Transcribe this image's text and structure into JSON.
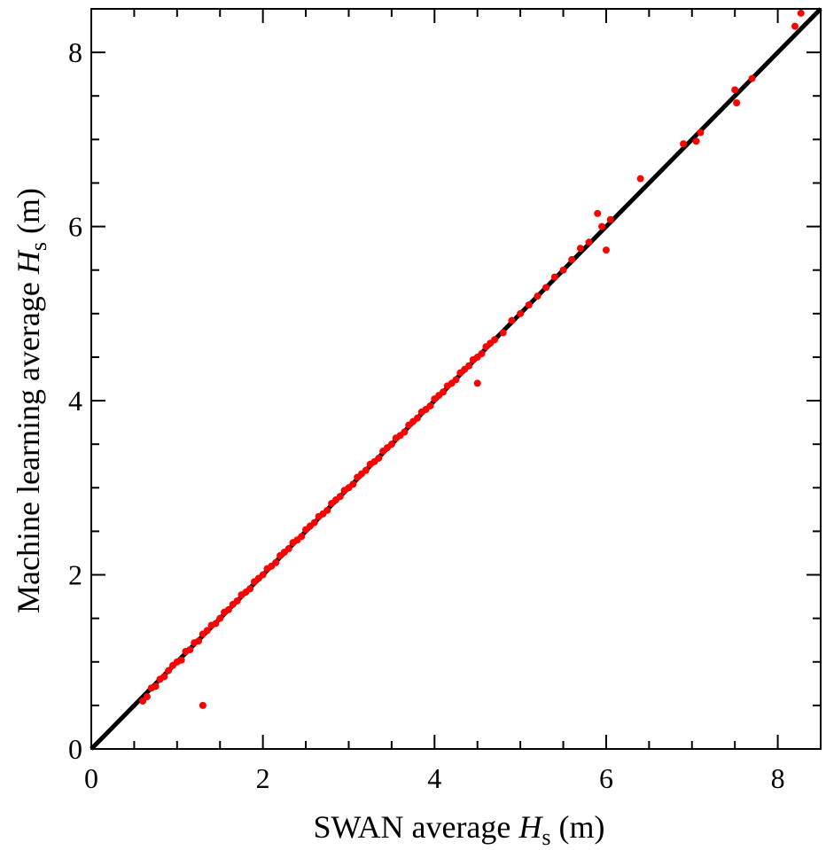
{
  "chart_data": {
    "type": "scatter",
    "xlabel": {
      "prefix": "SWAN average ",
      "var": "H",
      "sub": "s",
      "suffix": " (m)"
    },
    "ylabel": {
      "prefix": "Machine learning average ",
      "var": "H",
      "sub": "s",
      "suffix": " (m)"
    },
    "xlim": [
      0,
      8.5
    ],
    "ylim": [
      0,
      8.5
    ],
    "x_ticks": [
      0,
      2,
      4,
      6,
      8
    ],
    "y_ticks": [
      0,
      2,
      4,
      6,
      8
    ],
    "minor_tick_step": 0.5,
    "grid": false,
    "legend": "none",
    "reference_line": {
      "x": [
        0,
        8.5
      ],
      "y": [
        0,
        8.5
      ],
      "color": "#000000"
    },
    "point_color": "#ff0000",
    "series": [
      {
        "values": [
          [
            0.6,
            0.55
          ],
          [
            0.65,
            0.6
          ],
          [
            0.7,
            0.7
          ],
          [
            0.75,
            0.72
          ],
          [
            0.8,
            0.8
          ],
          [
            0.85,
            0.83
          ],
          [
            0.9,
            0.9
          ],
          [
            0.95,
            0.96
          ],
          [
            1.0,
            1.0
          ],
          [
            1.05,
            1.02
          ],
          [
            1.1,
            1.12
          ],
          [
            1.15,
            1.14
          ],
          [
            1.2,
            1.22
          ],
          [
            1.25,
            1.24
          ],
          [
            1.3,
            0.5
          ],
          [
            1.3,
            1.32
          ],
          [
            1.35,
            1.36
          ],
          [
            1.4,
            1.42
          ],
          [
            1.45,
            1.44
          ],
          [
            1.5,
            1.5
          ],
          [
            1.55,
            1.57
          ],
          [
            1.6,
            1.6
          ],
          [
            1.65,
            1.66
          ],
          [
            1.7,
            1.7
          ],
          [
            1.75,
            1.77
          ],
          [
            1.8,
            1.8
          ],
          [
            1.85,
            1.84
          ],
          [
            1.9,
            1.92
          ],
          [
            1.95,
            1.96
          ],
          [
            2.0,
            2.0
          ],
          [
            2.05,
            2.07
          ],
          [
            2.1,
            2.1
          ],
          [
            2.15,
            2.14
          ],
          [
            2.2,
            2.22
          ],
          [
            2.25,
            2.26
          ],
          [
            2.3,
            2.3
          ],
          [
            2.35,
            2.37
          ],
          [
            2.4,
            2.4
          ],
          [
            2.45,
            2.44
          ],
          [
            2.5,
            2.52
          ],
          [
            2.55,
            2.56
          ],
          [
            2.6,
            2.6
          ],
          [
            2.65,
            2.67
          ],
          [
            2.7,
            2.7
          ],
          [
            2.75,
            2.74
          ],
          [
            2.8,
            2.82
          ],
          [
            2.85,
            2.86
          ],
          [
            2.9,
            2.9
          ],
          [
            2.95,
            2.97
          ],
          [
            3.0,
            3.0
          ],
          [
            3.05,
            3.04
          ],
          [
            3.1,
            3.12
          ],
          [
            3.15,
            3.16
          ],
          [
            3.2,
            3.2
          ],
          [
            3.25,
            3.27
          ],
          [
            3.3,
            3.3
          ],
          [
            3.35,
            3.34
          ],
          [
            3.4,
            3.42
          ],
          [
            3.45,
            3.46
          ],
          [
            3.5,
            3.5
          ],
          [
            3.55,
            3.57
          ],
          [
            3.6,
            3.6
          ],
          [
            3.65,
            3.64
          ],
          [
            3.7,
            3.72
          ],
          [
            3.75,
            3.76
          ],
          [
            3.8,
            3.8
          ],
          [
            3.85,
            3.87
          ],
          [
            3.9,
            3.9
          ],
          [
            3.95,
            3.94
          ],
          [
            4.0,
            4.02
          ],
          [
            4.05,
            4.06
          ],
          [
            4.1,
            4.1
          ],
          [
            4.15,
            4.17
          ],
          [
            4.2,
            4.2
          ],
          [
            4.25,
            4.24
          ],
          [
            4.3,
            4.32
          ],
          [
            4.35,
            4.36
          ],
          [
            4.4,
            4.4
          ],
          [
            4.45,
            4.47
          ],
          [
            4.5,
            4.2
          ],
          [
            4.5,
            4.5
          ],
          [
            4.55,
            4.54
          ],
          [
            4.6,
            4.62
          ],
          [
            4.65,
            4.66
          ],
          [
            4.7,
            4.7
          ],
          [
            4.8,
            4.78
          ],
          [
            4.9,
            4.92
          ],
          [
            5.0,
            5.0
          ],
          [
            5.1,
            5.1
          ],
          [
            5.2,
            5.2
          ],
          [
            5.3,
            5.3
          ],
          [
            5.4,
            5.42
          ],
          [
            5.5,
            5.5
          ],
          [
            5.6,
            5.62
          ],
          [
            5.7,
            5.75
          ],
          [
            5.8,
            5.82
          ],
          [
            5.9,
            6.15
          ],
          [
            5.95,
            6.0
          ],
          [
            6.0,
            5.73
          ],
          [
            6.05,
            6.08
          ],
          [
            6.4,
            6.55
          ],
          [
            6.9,
            6.95
          ],
          [
            7.05,
            6.98
          ],
          [
            7.1,
            7.08
          ],
          [
            7.5,
            7.57
          ],
          [
            7.52,
            7.42
          ],
          [
            7.7,
            7.7
          ],
          [
            8.2,
            8.3
          ],
          [
            8.27,
            8.45
          ]
        ]
      }
    ]
  }
}
